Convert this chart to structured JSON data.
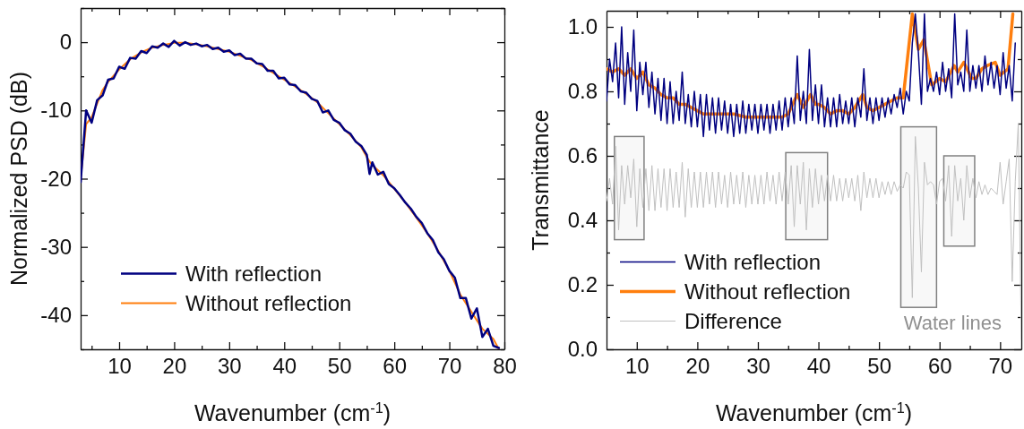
{
  "chart_data": [
    {
      "type": "line",
      "xlabel": "Wavenumber (cm$^{-1}$)",
      "ylabel": "Normalized PSD (dB)",
      "xlim": [
        3,
        80
      ],
      "ylim": [
        -45,
        5
      ],
      "xticks": [
        {
          "value": 5,
          "label": null
        },
        10,
        {
          "value": 15,
          "label": null
        },
        20,
        {
          "value": 25,
          "label": null
        },
        30,
        {
          "value": 35,
          "label": null
        },
        40,
        {
          "value": 45,
          "label": null
        },
        50,
        {
          "value": 55,
          "label": null
        },
        60,
        {
          "value": 65,
          "label": null
        },
        70,
        {
          "value": 75,
          "label": null
        },
        80
      ],
      "yticks": [
        {
          "value": -45,
          "label": null
        },
        -40,
        {
          "value": -35,
          "label": null
        },
        -30,
        {
          "value": -25,
          "label": null
        },
        -20,
        {
          "value": -15,
          "label": null
        },
        -10,
        {
          "value": -5,
          "label": null
        },
        0,
        {
          "value": 5,
          "label": null
        }
      ],
      "legend": "bottom left",
      "series": [
        {
          "name": "With reflection",
          "color": "#000080",
          "x": [
            3,
            4,
            5,
            6,
            7,
            8,
            9,
            10,
            11,
            12,
            13,
            14,
            15,
            16,
            17,
            18,
            19,
            20,
            21,
            22,
            23,
            24,
            25,
            26,
            27,
            28,
            29,
            30,
            31,
            32,
            33,
            34,
            35,
            36,
            37,
            38,
            39,
            40,
            41,
            42,
            43,
            44,
            45,
            46,
            47,
            48,
            49,
            50,
            51,
            52,
            53,
            54,
            55,
            55.5,
            56,
            57,
            58,
            59,
            60,
            61,
            62,
            63,
            64,
            65,
            66,
            67,
            68,
            69,
            70,
            71,
            72,
            73,
            74,
            75,
            76,
            77,
            78,
            79
          ],
          "values": [
            -20.5,
            -10,
            -11.8,
            -8.5,
            -7.8,
            -5.5,
            -5.3,
            -3.6,
            -3.9,
            -2.3,
            -2.4,
            -1.3,
            -1.6,
            -0.6,
            -0.8,
            -0.2,
            -0.7,
            0.2,
            -0.5,
            0,
            -0.4,
            -0.2,
            -0.6,
            -0.4,
            -1,
            -0.8,
            -1.4,
            -1.2,
            -1.9,
            -1.7,
            -2.4,
            -2.4,
            -3.1,
            -3.2,
            -4.2,
            -4.2,
            -5.3,
            -5.2,
            -6.2,
            -6.3,
            -7.2,
            -7.4,
            -8.3,
            -8.6,
            -10.3,
            -10,
            -11.4,
            -11.8,
            -12.9,
            -13.4,
            -14.6,
            -15.2,
            -16.5,
            -19.3,
            -17.6,
            -19.4,
            -19,
            -20.8,
            -21.4,
            -22.4,
            -23.5,
            -24.4,
            -25.6,
            -26.5,
            -28,
            -29,
            -30.8,
            -31.8,
            -33.5,
            -34.5,
            -37.5,
            -37.5,
            -40.5,
            -39,
            -43.2,
            -42,
            -44.5,
            -44.8
          ]
        },
        {
          "name": "Without reflection",
          "color": "#ff7f0e",
          "x": [
            3,
            4,
            5,
            6,
            7,
            8,
            10,
            12,
            14,
            16,
            18,
            20,
            22,
            24,
            26,
            28,
            30,
            32,
            34,
            36,
            38,
            40,
            42,
            44,
            46,
            48,
            50,
            52,
            54,
            55.5,
            56,
            58,
            60,
            62,
            64,
            66,
            68,
            70,
            72,
            74,
            76,
            78,
            79
          ],
          "values": [
            -20,
            -12,
            -11,
            -9,
            -7,
            -5.8,
            -4,
            -2.5,
            -1.5,
            -0.8,
            -0.4,
            -0.1,
            -0.1,
            -0.3,
            -0.6,
            -1,
            -1.4,
            -2,
            -2.6,
            -3.5,
            -4.5,
            -5.5,
            -6.5,
            -7.6,
            -8.8,
            -10.4,
            -12,
            -13.6,
            -15.4,
            -17.5,
            -18,
            -19.5,
            -21.5,
            -23.5,
            -25.7,
            -28,
            -30.6,
            -33.5,
            -37,
            -39.5,
            -42,
            -43.5,
            -45
          ]
        }
      ]
    },
    {
      "type": "line",
      "xlabel": "Wavenumber (cm$^{-1}$)",
      "ylabel": "Transmittance",
      "xlim": [
        5,
        73.5
      ],
      "ylim": [
        0,
        1.05
      ],
      "xticks": [
        10,
        {
          "value": 15,
          "label": null
        },
        20,
        {
          "value": 25,
          "label": null
        },
        30,
        {
          "value": 35,
          "label": null
        },
        40,
        {
          "value": 45,
          "label": null
        },
        50,
        {
          "value": 55,
          "label": null
        },
        60,
        {
          "value": 65,
          "label": null
        },
        70
      ],
      "yticks": [
        {
          "value": 0,
          "label": "0.0"
        },
        {
          "value": 0.1,
          "label": null
        },
        0.2,
        {
          "value": 0.3,
          "label": null
        },
        0.4,
        {
          "value": 0.5,
          "label": null
        },
        0.6,
        {
          "value": 0.7,
          "label": null
        },
        0.8,
        {
          "value": 0.9,
          "label": null
        },
        {
          "value": 1,
          "label": "1.0"
        }
      ],
      "legend": "bottom left",
      "bands": [
        {
          "axis": "x",
          "from": 6.3,
          "to": 11.2,
          "color": "#808080"
        },
        {
          "axis": "x",
          "from": 34.6,
          "to": 41.5,
          "color": "#808080"
        },
        {
          "axis": "x",
          "from": 53.6,
          "to": 59.5,
          "color": "#808080"
        },
        {
          "axis": "x",
          "from": 60.7,
          "to": 65.8,
          "color": "#808080"
        }
      ],
      "annotations": [
        "Water lines"
      ],
      "series": [
        {
          "name": "With reflection",
          "color": "#000080",
          "x": [
            5,
            5.5,
            6,
            6.5,
            7,
            7.5,
            8,
            8.5,
            9,
            9.5,
            10,
            10.5,
            11,
            11.5,
            12,
            12.5,
            13,
            13.5,
            14,
            14.5,
            15,
            15.5,
            16,
            16.5,
            17,
            17.5,
            18,
            18.5,
            19,
            19.5,
            20,
            20.5,
            21,
            21.5,
            22,
            22.5,
            23,
            23.5,
            24,
            24.5,
            25,
            25.5,
            26,
            26.5,
            27,
            27.5,
            28,
            28.5,
            29,
            29.5,
            30,
            30.5,
            31,
            31.5,
            32,
            32.5,
            33,
            33.5,
            34,
            34.5,
            35,
            35.5,
            36,
            36.5,
            37,
            37.5,
            38,
            38.5,
            39,
            39.5,
            40,
            40.5,
            41,
            41.5,
            42,
            42.5,
            43,
            43.5,
            44,
            44.5,
            45,
            45.5,
            46,
            46.5,
            47,
            47.5,
            48,
            48.5,
            49,
            49.5,
            50,
            50.5,
            51,
            51.5,
            52,
            52.5,
            53,
            53.5,
            54,
            54.5,
            55,
            55.5,
            56,
            56.5,
            57,
            57.5,
            58,
            58.5,
            59,
            59.5,
            60,
            60.5,
            61,
            61.5,
            62,
            62.5,
            63,
            63.5,
            64,
            64.5,
            65,
            65.5,
            66,
            66.5,
            67,
            67.5,
            68,
            68.5,
            69,
            69.5,
            70,
            70.5,
            71,
            71.5,
            72,
            72.5
          ],
          "values": [
            0.77,
            0.9,
            0.83,
            0.95,
            0.78,
            1.0,
            0.76,
            0.92,
            0.8,
            0.99,
            0.74,
            0.89,
            0.79,
            0.89,
            0.75,
            0.86,
            0.73,
            0.84,
            0.71,
            0.84,
            0.7,
            0.83,
            0.7,
            0.8,
            0.71,
            0.86,
            0.7,
            0.79,
            0.69,
            0.8,
            0.69,
            0.79,
            0.66,
            0.79,
            0.68,
            0.78,
            0.67,
            0.78,
            0.68,
            0.77,
            0.67,
            0.76,
            0.66,
            0.76,
            0.67,
            0.77,
            0.67,
            0.76,
            0.68,
            0.76,
            0.67,
            0.76,
            0.68,
            0.76,
            0.67,
            0.76,
            0.68,
            0.77,
            0.68,
            0.78,
            0.69,
            0.78,
            0.7,
            0.91,
            0.71,
            0.8,
            0.7,
            0.93,
            0.71,
            0.82,
            0.7,
            0.82,
            0.69,
            0.78,
            0.69,
            0.78,
            0.69,
            0.79,
            0.7,
            0.77,
            0.7,
            0.78,
            0.69,
            0.78,
            0.72,
            0.87,
            0.71,
            0.78,
            0.7,
            0.78,
            0.71,
            0.78,
            0.72,
            0.78,
            0.73,
            0.79,
            0.75,
            0.81,
            0.73,
            0.8,
            0.77,
            0.95,
            1.04,
            0.92,
            0.76,
            1.04,
            0.8,
            0.84,
            0.8,
            0.86,
            0.79,
            0.89,
            0.8,
            0.87,
            0.78,
            1.04,
            0.82,
            0.86,
            0.8,
            0.99,
            0.8,
            0.88,
            0.81,
            0.88,
            0.8,
            0.91,
            0.82,
            0.89,
            0.81,
            0.88,
            0.79,
            0.92,
            0.81,
            0.88,
            0.77,
            0.95
          ]
        },
        {
          "name": "Without reflection",
          "color": "#ff7f0e",
          "x": [
            5,
            6,
            7,
            8,
            9,
            10,
            11,
            12,
            13,
            14,
            15,
            16,
            17,
            18,
            19,
            20,
            21,
            22,
            24,
            26,
            28,
            30,
            32,
            34,
            35,
            36.5,
            37.5,
            38.7,
            39.5,
            40,
            41,
            42,
            43,
            44,
            45,
            46,
            47.3,
            48,
            49,
            50,
            51,
            52,
            53,
            54,
            55.5,
            56.5,
            57.4,
            58.7,
            60,
            61,
            62.4,
            63,
            64,
            65.3,
            66,
            67,
            67.9,
            69.2,
            70,
            71.3,
            72.1
          ],
          "values": [
            0.87,
            0.86,
            0.87,
            0.85,
            0.87,
            0.84,
            0.86,
            0.82,
            0.81,
            0.79,
            0.78,
            0.78,
            0.76,
            0.76,
            0.75,
            0.74,
            0.73,
            0.73,
            0.73,
            0.73,
            0.72,
            0.72,
            0.72,
            0.72,
            0.73,
            0.79,
            0.75,
            0.79,
            0.76,
            0.76,
            0.75,
            0.73,
            0.74,
            0.74,
            0.73,
            0.75,
            0.79,
            0.75,
            0.74,
            0.75,
            0.76,
            0.77,
            0.78,
            0.78,
            1.04,
            0.93,
            0.96,
            0.82,
            0.84,
            0.83,
            0.88,
            0.86,
            0.89,
            0.84,
            0.84,
            0.87,
            0.88,
            0.89,
            0.85,
            0.87,
            1.04
          ]
        },
        {
          "name": "Difference",
          "color": "#c0c0c0",
          "x": [
            5,
            5.5,
            6,
            6.5,
            7,
            7.5,
            8,
            8.5,
            9,
            9.5,
            10,
            10.5,
            11,
            11.5,
            12,
            12.5,
            13,
            13.5,
            14,
            14.5,
            15,
            15.5,
            16,
            16.5,
            17,
            17.5,
            18,
            18.5,
            19,
            19.5,
            20,
            20.5,
            21,
            21.5,
            22,
            22.5,
            23,
            23.5,
            24,
            24.5,
            25,
            25.5,
            26,
            26.5,
            27,
            27.5,
            28,
            28.5,
            29,
            29.5,
            30,
            30.5,
            31,
            31.5,
            32,
            32.5,
            33,
            33.5,
            34,
            34.5,
            35,
            35.5,
            36,
            36.5,
            37,
            37.5,
            38,
            38.5,
            39,
            39.5,
            40,
            40.5,
            41,
            41.5,
            42,
            42.5,
            43,
            43.5,
            44,
            44.5,
            45,
            45.5,
            46,
            46.5,
            47,
            47.5,
            48,
            48.5,
            49,
            49.5,
            50,
            50.5,
            51,
            51.5,
            52,
            52.5,
            53,
            53.5,
            54,
            54.5,
            55,
            55.5,
            56,
            56.5,
            57,
            57.5,
            58,
            58.5,
            59,
            59.5,
            60,
            60.5,
            61,
            61.5,
            62,
            62.5,
            63,
            63.5,
            64,
            64.5,
            65,
            65.5,
            66,
            66.5,
            67,
            67.5,
            68,
            68.5,
            69,
            69.5,
            70,
            70.5,
            71,
            71.5,
            72,
            72.5,
            73,
            73.5
          ],
          "values": [
            0.46,
            0.53,
            0.45,
            0.63,
            0.37,
            0.57,
            0.45,
            0.57,
            0.47,
            0.59,
            0.38,
            0.56,
            0.44,
            0.56,
            0.43,
            0.57,
            0.43,
            0.56,
            0.44,
            0.56,
            0.43,
            0.56,
            0.44,
            0.55,
            0.44,
            0.58,
            0.41,
            0.56,
            0.44,
            0.55,
            0.44,
            0.55,
            0.44,
            0.55,
            0.45,
            0.55,
            0.44,
            0.55,
            0.45,
            0.54,
            0.44,
            0.55,
            0.45,
            0.54,
            0.45,
            0.55,
            0.44,
            0.54,
            0.45,
            0.54,
            0.45,
            0.54,
            0.45,
            0.55,
            0.46,
            0.54,
            0.45,
            0.55,
            0.46,
            0.55,
            0.45,
            0.57,
            0.38,
            0.57,
            0.45,
            0.58,
            0.37,
            0.56,
            0.44,
            0.56,
            0.45,
            0.54,
            0.46,
            0.54,
            0.46,
            0.54,
            0.46,
            0.53,
            0.46,
            0.53,
            0.47,
            0.53,
            0.46,
            0.54,
            0.43,
            0.55,
            0.47,
            0.53,
            0.47,
            0.53,
            0.47,
            0.52,
            0.48,
            0.52,
            0.48,
            0.52,
            0.49,
            0.51,
            0.5,
            0.55,
            0.54,
            0.16,
            0.66,
            0.5,
            0.24,
            0.58,
            0.51,
            0.52,
            0.51,
            0.45,
            0.52,
            0.53,
            0.46,
            0.57,
            0.35,
            0.57,
            0.46,
            0.53,
            0.4,
            0.57,
            0.47,
            0.53,
            0.47,
            0.52,
            0.48,
            0.51,
            0.48,
            0.5,
            0.49,
            0.48,
            0.58,
            0.45,
            0.52,
            0.59,
            0.21,
            0.52,
            0.7,
            0.03
          ]
        }
      ]
    }
  ]
}
